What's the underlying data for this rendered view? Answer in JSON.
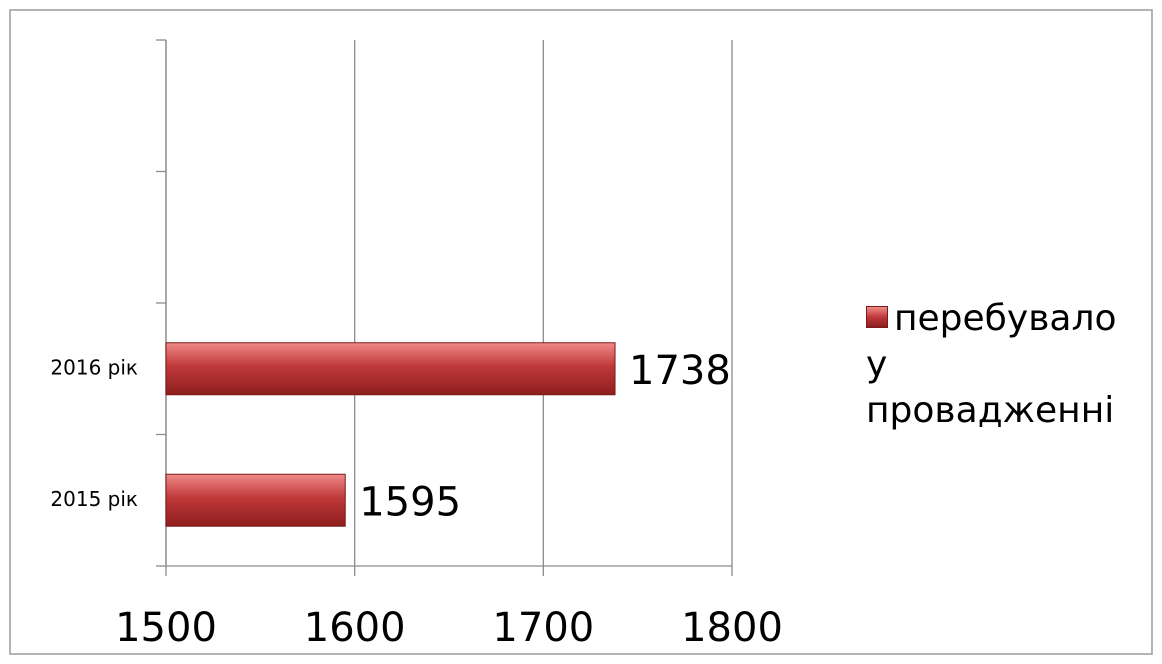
{
  "chart_data": {
    "type": "hbar",
    "categories": [
      "2015 рік",
      "2016 рік",
      null,
      null
    ],
    "series": [
      {
        "name": "перебувало у провадженні",
        "color": "#c0393a",
        "values": [
          1595,
          1738,
          null,
          null
        ]
      }
    ],
    "xlim": [
      1500,
      1800
    ],
    "xticks": [
      1500,
      1600,
      1700,
      1800
    ],
    "grid": true,
    "legend": "right"
  }
}
